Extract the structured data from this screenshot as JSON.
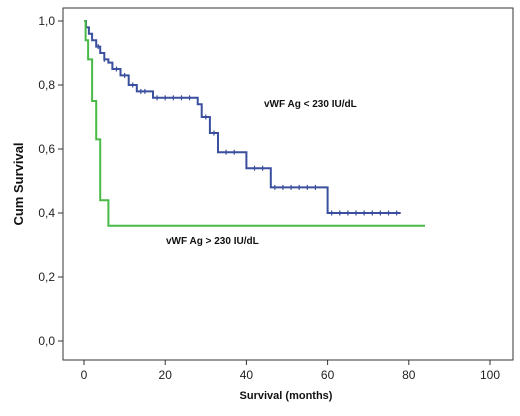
{
  "chart_data": {
    "type": "line",
    "title": "",
    "xlabel": "Survival (months)",
    "ylabel": "Cum Survival",
    "xlim": [
      0,
      100
    ],
    "ylim": [
      0,
      1
    ],
    "x_ticks": [
      "0",
      "20",
      "40",
      "60",
      "80",
      "100"
    ],
    "y_ticks": [
      "0,0",
      "0,2",
      "0,4",
      "0,6",
      "0,8",
      "1,0"
    ],
    "grid": false,
    "legend": "none",
    "series": [
      {
        "name": "vWF Ag < 230 IU/dL",
        "color": "#3a4f9e",
        "step": true,
        "points": [
          [
            0,
            1.0
          ],
          [
            0.5,
            0.98
          ],
          [
            1.2,
            0.96
          ],
          [
            2,
            0.94
          ],
          [
            3,
            0.92
          ],
          [
            4,
            0.9
          ],
          [
            5,
            0.88
          ],
          [
            6,
            0.87
          ],
          [
            7,
            0.85
          ],
          [
            9,
            0.83
          ],
          [
            11,
            0.8
          ],
          [
            13,
            0.78
          ],
          [
            17,
            0.76
          ],
          [
            28,
            0.74
          ],
          [
            29,
            0.7
          ],
          [
            31,
            0.65
          ],
          [
            33,
            0.59
          ],
          [
            40,
            0.54
          ],
          [
            46,
            0.48
          ],
          [
            60,
            0.4
          ],
          [
            78,
            0.4
          ]
        ],
        "censored_x": [
          3.5,
          5,
          8,
          10,
          12,
          14,
          15,
          18,
          20,
          22,
          24,
          26,
          30,
          32,
          35,
          37,
          42,
          44,
          47,
          49,
          51,
          53,
          55,
          57,
          61,
          63,
          65,
          67,
          69,
          71,
          73,
          75,
          77
        ]
      },
      {
        "name": "vWF Ag > 230 IU/dL",
        "color": "#49b947",
        "step": true,
        "points": [
          [
            0,
            1.0
          ],
          [
            0.4,
            0.94
          ],
          [
            1,
            0.88
          ],
          [
            2,
            0.75
          ],
          [
            3,
            0.63
          ],
          [
            4,
            0.44
          ],
          [
            6,
            0.36
          ],
          [
            84,
            0.36
          ]
        ],
        "censored_x": []
      }
    ]
  }
}
